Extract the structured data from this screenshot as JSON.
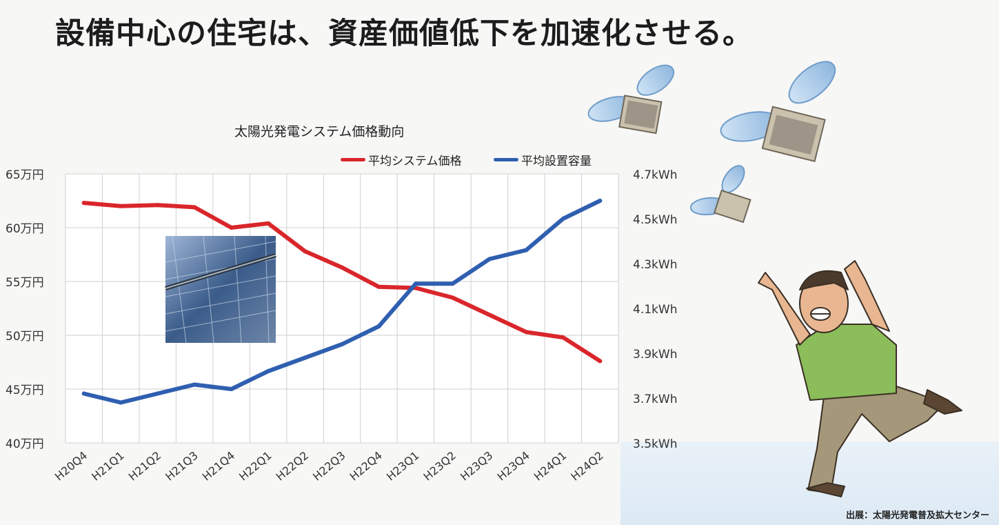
{
  "headline": "設備中心の住宅は、資産価値低下を加速化させる。",
  "source_note": "出展：太陽光発電普及拡大センター",
  "colors": {
    "price_series": "#d9262b",
    "capacity_series": "#2f5fb0",
    "grid": "#cfcfcf"
  },
  "illustrations": [
    "solar-panel-photo",
    "flying-money-icon",
    "panicking-man-illustration"
  ],
  "chart_data": {
    "type": "line",
    "title": "太陽光発電システム価格動向",
    "categories": [
      "H20Q4",
      "H21Q1",
      "H21Q2",
      "H21Q3",
      "H21Q4",
      "H22Q1",
      "H22Q2",
      "H22Q3",
      "H22Q4",
      "H23Q1",
      "H23Q2",
      "H23Q3",
      "H23Q4",
      "H24Q1",
      "H24Q2"
    ],
    "legend_position": "top-right",
    "grid": true,
    "y_left": {
      "ticks": [
        "65万円",
        "60万円",
        "55万円",
        "50万円",
        "45万円",
        "40万円"
      ],
      "range": [
        40,
        65
      ],
      "unit": "万円"
    },
    "y_right": {
      "ticks": [
        "4.7kWh",
        "4.5kWh",
        "4.3kWh",
        "4.1kWh",
        "3.9kWh",
        "3.7kWh",
        "3.5kWh"
      ],
      "range": [
        3.5,
        4.7
      ],
      "unit": "kWh"
    },
    "series": [
      {
        "name": "平均システム価格",
        "axis": "left",
        "color": "#d9262b",
        "values": [
          62.3,
          62.0,
          62.1,
          61.9,
          60.0,
          60.4,
          57.8,
          56.3,
          54.5,
          54.4,
          53.5,
          51.9,
          50.3,
          49.8,
          47.6
        ]
      },
      {
        "name": "平均設置容量",
        "axis": "right",
        "color": "#2f5fb0",
        "values": [
          3.72,
          3.68,
          3.72,
          3.76,
          3.74,
          3.82,
          3.88,
          3.94,
          4.02,
          4.21,
          4.21,
          4.32,
          4.36,
          4.5,
          4.58
        ]
      }
    ]
  }
}
